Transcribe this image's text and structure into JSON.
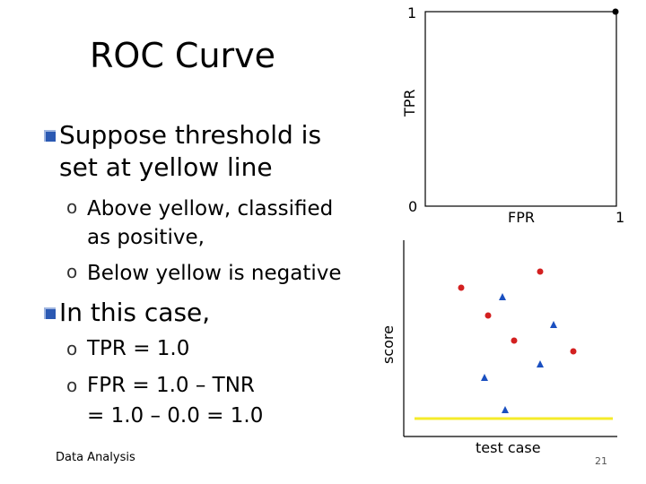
{
  "slide": {
    "title": "ROC Curve",
    "bullets": [
      {
        "text": "Suppose threshold is",
        "cont": "set at yellow line"
      },
      {
        "text": "In this case,"
      }
    ],
    "sub_bullets_1": [
      {
        "line1": "Above yellow, classified",
        "line2": "as positive,"
      },
      {
        "line1": "Below yellow is negative"
      }
    ],
    "sub_bullets_2": [
      {
        "line1": "TPR = 1.0"
      },
      {
        "line1": "FPR = 1.0 – TNR",
        "line2": "= 1.0 – 0.0 = 1.0"
      }
    ],
    "footer": "Data Analysis",
    "page_number": "21",
    "colors": {
      "bullet": "#2b59b3",
      "threshold_line": "#f5eb2a",
      "positive_point": "#d32020",
      "negative_point": "#1a4fc0"
    }
  },
  "roc_plot": {
    "y_top_tick": "1",
    "y_label": "TPR",
    "origin_tick": "0",
    "x_label": "FPR",
    "x_right_tick": "1",
    "point": {
      "fpr": 1.0,
      "tpr": 1.0
    }
  },
  "score_plot": {
    "y_label": "score",
    "x_label": "test case",
    "positives_marker": "circle",
    "negatives_marker": "triangle"
  }
}
